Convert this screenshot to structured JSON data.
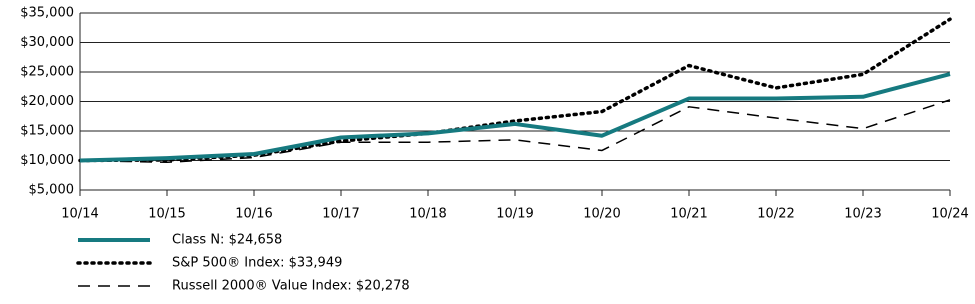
{
  "chart_data": {
    "type": "line",
    "categories": [
      "10/14",
      "10/15",
      "10/16",
      "10/17",
      "10/18",
      "10/19",
      "10/20",
      "10/21",
      "10/22",
      "10/23",
      "10/24"
    ],
    "series": [
      {
        "name": "Class N: $24,658",
        "color": "#167a80",
        "style": "solid",
        "values": [
          10000,
          10400,
          11100,
          13900,
          14600,
          16200,
          14200,
          20500,
          20500,
          20800,
          24658
        ]
      },
      {
        "name": "S&P 500® Index: $33,949",
        "color": "#000000",
        "style": "dotted",
        "values": [
          10000,
          10100,
          10900,
          13300,
          14600,
          16700,
          18300,
          26100,
          22300,
          24600,
          33949
        ]
      },
      {
        "name": "Russell 2000® Value Index: $20,278",
        "color": "#000000",
        "style": "dashed",
        "values": [
          10000,
          9700,
          10500,
          13100,
          13100,
          13500,
          11700,
          19100,
          17200,
          15400,
          20278
        ]
      }
    ],
    "ylim": [
      5000,
      35000
    ],
    "yticks": [
      {
        "value": 5000,
        "label": "$5,000"
      },
      {
        "value": 10000,
        "label": "$10,000"
      },
      {
        "value": 15000,
        "label": "$15,000"
      },
      {
        "value": 20000,
        "label": "$20,000"
      },
      {
        "value": 25000,
        "label": "$25,000"
      },
      {
        "value": 30000,
        "label": "$30,000"
      },
      {
        "value": 35000,
        "label": "$35,000"
      }
    ],
    "grid": true
  }
}
